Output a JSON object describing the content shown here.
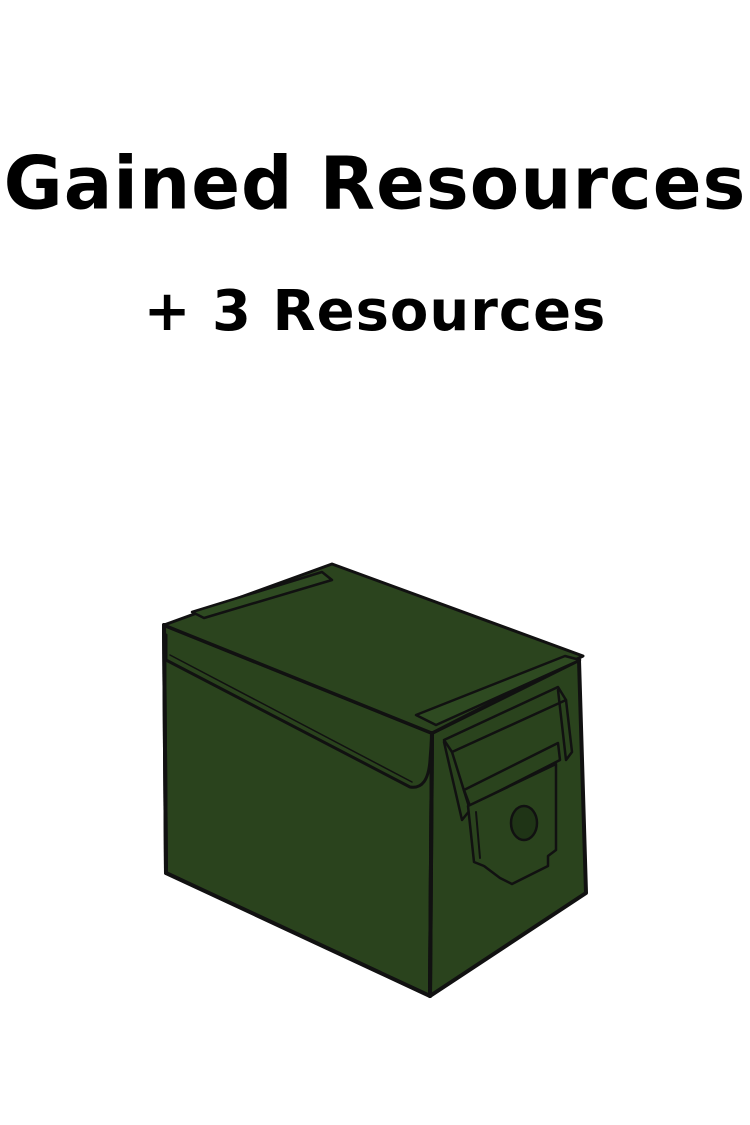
{
  "title": "Gained Resources",
  "reward": "+ 3 Resources",
  "image": {
    "icon": "ammo-crate-icon",
    "colors": {
      "body": "#2a431d",
      "outline": "#111111"
    }
  }
}
